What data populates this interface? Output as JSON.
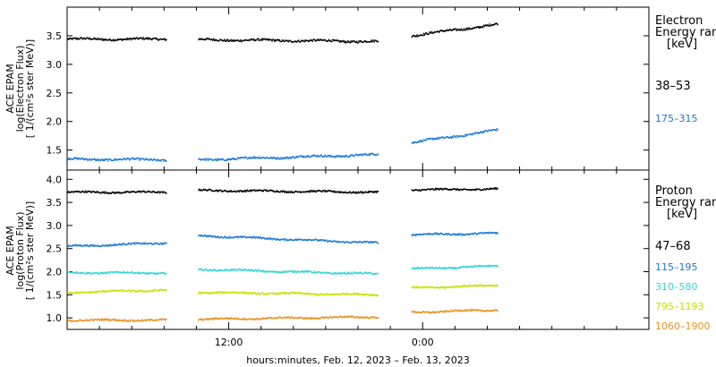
{
  "chart_data": [
    {
      "type": "scatter",
      "panel": "electron",
      "ylabel_lines": [
        "ACE EPAM",
        "log(Electron Flux)",
        "[ 1/(cm²s ster MeV)]"
      ],
      "legend_title_lines": [
        "Electron",
        "Energy ranges",
        "[keV]"
      ],
      "ylim": [
        1.15,
        4.0
      ],
      "yticks": [
        1.5,
        2.0,
        2.5,
        3.0,
        3.5
      ],
      "ytick_labels": [
        "1.5",
        "2.0",
        "2.5",
        "3.0",
        "3.5"
      ],
      "series": [
        {
          "name": "38–53",
          "color": "#000000",
          "segments": [
            {
              "x_start": 0.0,
              "x_end": 6.1,
              "y_start": 3.44,
              "y_end": 3.44
            },
            {
              "x_start": 8.1,
              "x_end": 19.2,
              "y_start": 3.43,
              "y_end": 3.4
            },
            {
              "x_start": 21.3,
              "x_end": 26.6,
              "y_start": 3.5,
              "y_end": 3.7
            }
          ]
        },
        {
          "name": "175–315",
          "color": "#1a78d8",
          "segments": [
            {
              "x_start": 0.0,
              "x_end": 6.1,
              "y_start": 1.34,
              "y_end": 1.33
            },
            {
              "x_start": 8.1,
              "x_end": 19.2,
              "y_start": 1.33,
              "y_end": 1.42
            },
            {
              "x_start": 21.3,
              "x_end": 26.6,
              "y_start": 1.63,
              "y_end": 1.85
            }
          ]
        }
      ]
    },
    {
      "type": "scatter",
      "panel": "proton",
      "ylabel_lines": [
        "ACE EPAM",
        "log(Proton Flux)",
        "[ 1/(cm²s ster MeV)]"
      ],
      "legend_title_lines": [
        "Proton",
        "Energy ranges",
        "[keV]"
      ],
      "ylim": [
        0.75,
        4.2
      ],
      "yticks": [
        1.0,
        1.5,
        2.0,
        2.5,
        3.0,
        3.5,
        4.0
      ],
      "ytick_labels": [
        "1.0",
        "1.5",
        "2.0",
        "2.5",
        "3.0",
        "3.5",
        "4.0"
      ],
      "series": [
        {
          "name": "47–68",
          "color": "#000000",
          "segments": [
            {
              "x_start": 0.0,
              "x_end": 6.1,
              "y_start": 3.72,
              "y_end": 3.72
            },
            {
              "x_start": 8.1,
              "x_end": 19.2,
              "y_start": 3.76,
              "y_end": 3.72
            },
            {
              "x_start": 21.3,
              "x_end": 26.6,
              "y_start": 3.77,
              "y_end": 3.79
            }
          ]
        },
        {
          "name": "115–195",
          "color": "#1a78d8",
          "segments": [
            {
              "x_start": 0.0,
              "x_end": 6.1,
              "y_start": 2.55,
              "y_end": 2.62
            },
            {
              "x_start": 8.1,
              "x_end": 19.2,
              "y_start": 2.78,
              "y_end": 2.62
            },
            {
              "x_start": 21.3,
              "x_end": 26.6,
              "y_start": 2.8,
              "y_end": 2.83
            }
          ]
        },
        {
          "name": "310–580",
          "color": "#33d4d4",
          "segments": [
            {
              "x_start": 0.0,
              "x_end": 6.1,
              "y_start": 1.98,
              "y_end": 1.97
            },
            {
              "x_start": 8.1,
              "x_end": 19.2,
              "y_start": 2.05,
              "y_end": 1.95
            },
            {
              "x_start": 21.3,
              "x_end": 26.6,
              "y_start": 2.06,
              "y_end": 2.12
            }
          ]
        },
        {
          "name": "795–1193",
          "color": "#c8e000",
          "segments": [
            {
              "x_start": 0.0,
              "x_end": 6.1,
              "y_start": 1.55,
              "y_end": 1.6
            },
            {
              "x_start": 8.1,
              "x_end": 19.2,
              "y_start": 1.55,
              "y_end": 1.5
            },
            {
              "x_start": 21.3,
              "x_end": 26.6,
              "y_start": 1.65,
              "y_end": 1.7
            }
          ]
        },
        {
          "name": "1060–1900",
          "color": "#e89020",
          "segments": [
            {
              "x_start": 0.0,
              "x_end": 6.1,
              "y_start": 0.95,
              "y_end": 0.95
            },
            {
              "x_start": 8.1,
              "x_end": 19.2,
              "y_start": 0.97,
              "y_end": 1.02
            },
            {
              "x_start": 21.3,
              "x_end": 26.6,
              "y_start": 1.12,
              "y_end": 1.17
            }
          ]
        }
      ]
    }
  ],
  "x_axis": {
    "xlim": [
      0.0,
      36.0
    ],
    "major_ticks": [
      10.0,
      22.0
    ],
    "major_tick_labels": [
      "12:00",
      "0:00"
    ],
    "minor_ticks": [
      2,
      4,
      6,
      8,
      12,
      14,
      16,
      18,
      20,
      24,
      26,
      28,
      30,
      32,
      34
    ],
    "xlabel": "hours:minutes, Feb. 12, 2023 – Feb. 13, 2023"
  }
}
